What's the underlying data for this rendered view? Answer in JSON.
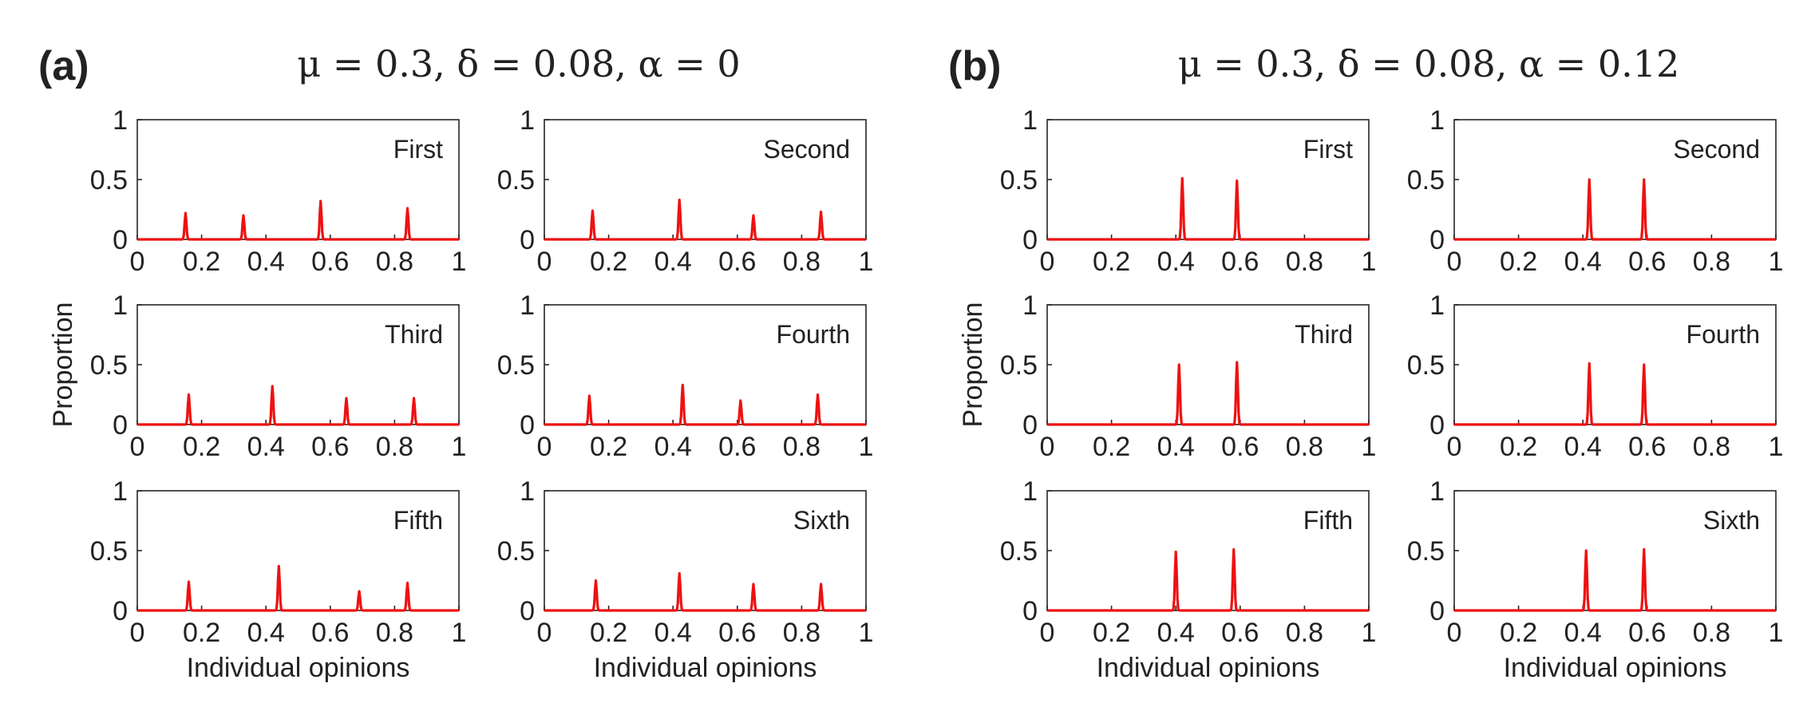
{
  "chart_data": [
    {
      "panel_label": "(a)",
      "title": "μ = 0.3, δ = 0.08, α = 0",
      "ylabel": "Proportion",
      "xlabel": "Individual opinions",
      "subplots": [
        {
          "title": "First",
          "type": "line",
          "xlim": [
            0,
            1
          ],
          "ylim": [
            0,
            1
          ],
          "xticks": [
            "0",
            "0.2",
            "0.4",
            "0.6",
            "0.8",
            "1"
          ],
          "yticks": [
            "0",
            "0.5",
            "1"
          ],
          "peaks": [
            {
              "x": 0.15,
              "y": 0.22
            },
            {
              "x": 0.33,
              "y": 0.2
            },
            {
              "x": 0.57,
              "y": 0.32
            },
            {
              "x": 0.84,
              "y": 0.26
            }
          ]
        },
        {
          "title": "Second",
          "type": "line",
          "xlim": [
            0,
            1
          ],
          "ylim": [
            0,
            1
          ],
          "xticks": [
            "0",
            "0.2",
            "0.4",
            "0.6",
            "0.8",
            "1"
          ],
          "yticks": [
            "0",
            "0.5",
            "1"
          ],
          "peaks": [
            {
              "x": 0.15,
              "y": 0.24
            },
            {
              "x": 0.42,
              "y": 0.33
            },
            {
              "x": 0.65,
              "y": 0.2
            },
            {
              "x": 0.86,
              "y": 0.23
            }
          ]
        },
        {
          "title": "Third",
          "type": "line",
          "xlim": [
            0,
            1
          ],
          "ylim": [
            0,
            1
          ],
          "xticks": [
            "0",
            "0.2",
            "0.4",
            "0.6",
            "0.8",
            "1"
          ],
          "yticks": [
            "0",
            "0.5",
            "1"
          ],
          "peaks": [
            {
              "x": 0.16,
              "y": 0.25
            },
            {
              "x": 0.42,
              "y": 0.32
            },
            {
              "x": 0.65,
              "y": 0.22
            },
            {
              "x": 0.86,
              "y": 0.22
            }
          ]
        },
        {
          "title": "Fourth",
          "type": "line",
          "xlim": [
            0,
            1
          ],
          "ylim": [
            0,
            1
          ],
          "xticks": [
            "0",
            "0.2",
            "0.4",
            "0.6",
            "0.8",
            "1"
          ],
          "yticks": [
            "0",
            "0.5",
            "1"
          ],
          "peaks": [
            {
              "x": 0.14,
              "y": 0.24
            },
            {
              "x": 0.43,
              "y": 0.33
            },
            {
              "x": 0.61,
              "y": 0.2
            },
            {
              "x": 0.85,
              "y": 0.25
            }
          ]
        },
        {
          "title": "Fifth",
          "type": "line",
          "xlim": [
            0,
            1
          ],
          "ylim": [
            0,
            1
          ],
          "xticks": [
            "0",
            "0.2",
            "0.4",
            "0.6",
            "0.8",
            "1"
          ],
          "yticks": [
            "0",
            "0.5",
            "1"
          ],
          "peaks": [
            {
              "x": 0.16,
              "y": 0.24
            },
            {
              "x": 0.44,
              "y": 0.37
            },
            {
              "x": 0.69,
              "y": 0.16
            },
            {
              "x": 0.84,
              "y": 0.23
            }
          ]
        },
        {
          "title": "Sixth",
          "type": "line",
          "xlim": [
            0,
            1
          ],
          "ylim": [
            0,
            1
          ],
          "xticks": [
            "0",
            "0.2",
            "0.4",
            "0.6",
            "0.8",
            "1"
          ],
          "yticks": [
            "0",
            "0.5",
            "1"
          ],
          "peaks": [
            {
              "x": 0.16,
              "y": 0.25
            },
            {
              "x": 0.42,
              "y": 0.31
            },
            {
              "x": 0.65,
              "y": 0.22
            },
            {
              "x": 0.86,
              "y": 0.22
            }
          ]
        }
      ]
    },
    {
      "panel_label": "(b)",
      "title": "μ = 0.3, δ = 0.08, α = 0.12",
      "ylabel": "Proportion",
      "xlabel": "Individual opinions",
      "subplots": [
        {
          "title": "First",
          "type": "line",
          "xlim": [
            0,
            1
          ],
          "ylim": [
            0,
            1
          ],
          "xticks": [
            "0",
            "0.2",
            "0.4",
            "0.6",
            "0.8",
            "1"
          ],
          "yticks": [
            "0",
            "0.5",
            "1"
          ],
          "peaks": [
            {
              "x": 0.42,
              "y": 0.51
            },
            {
              "x": 0.59,
              "y": 0.49
            }
          ]
        },
        {
          "title": "Second",
          "type": "line",
          "xlim": [
            0,
            1
          ],
          "ylim": [
            0,
            1
          ],
          "xticks": [
            "0",
            "0.2",
            "0.4",
            "0.6",
            "0.8",
            "1"
          ],
          "yticks": [
            "0",
            "0.5",
            "1"
          ],
          "peaks": [
            {
              "x": 0.42,
              "y": 0.5
            },
            {
              "x": 0.59,
              "y": 0.5
            }
          ]
        },
        {
          "title": "Third",
          "type": "line",
          "xlim": [
            0,
            1
          ],
          "ylim": [
            0,
            1
          ],
          "xticks": [
            "0",
            "0.2",
            "0.4",
            "0.6",
            "0.8",
            "1"
          ],
          "yticks": [
            "0",
            "0.5",
            "1"
          ],
          "peaks": [
            {
              "x": 0.41,
              "y": 0.5
            },
            {
              "x": 0.59,
              "y": 0.52
            }
          ]
        },
        {
          "title": "Fourth",
          "type": "line",
          "xlim": [
            0,
            1
          ],
          "ylim": [
            0,
            1
          ],
          "xticks": [
            "0",
            "0.2",
            "0.4",
            "0.6",
            "0.8",
            "1"
          ],
          "yticks": [
            "0",
            "0.5",
            "1"
          ],
          "peaks": [
            {
              "x": 0.42,
              "y": 0.51
            },
            {
              "x": 0.59,
              "y": 0.5
            }
          ]
        },
        {
          "title": "Fifth",
          "type": "line",
          "xlim": [
            0,
            1
          ],
          "ylim": [
            0,
            1
          ],
          "xticks": [
            "0",
            "0.2",
            "0.4",
            "0.6",
            "0.8",
            "1"
          ],
          "yticks": [
            "0",
            "0.5",
            "1"
          ],
          "peaks": [
            {
              "x": 0.4,
              "y": 0.49
            },
            {
              "x": 0.58,
              "y": 0.51
            }
          ]
        },
        {
          "title": "Sixth",
          "type": "line",
          "xlim": [
            0,
            1
          ],
          "ylim": [
            0,
            1
          ],
          "xticks": [
            "0",
            "0.2",
            "0.4",
            "0.6",
            "0.8",
            "1"
          ],
          "yticks": [
            "0",
            "0.5",
            "1"
          ],
          "peaks": [
            {
              "x": 0.41,
              "y": 0.5
            },
            {
              "x": 0.59,
              "y": 0.51
            }
          ]
        }
      ]
    }
  ],
  "colors": {
    "line": "#ee1111",
    "axis": "#262626",
    "text": "#222222"
  }
}
